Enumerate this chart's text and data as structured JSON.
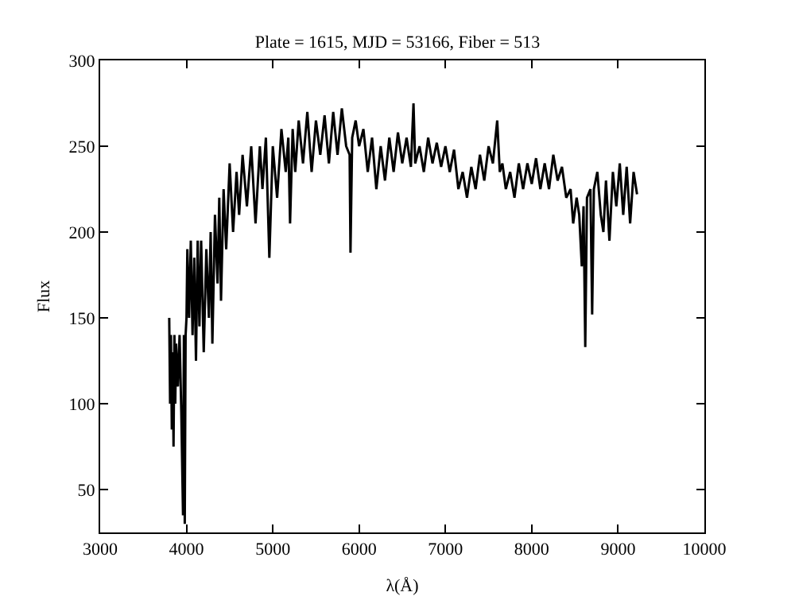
{
  "chart_data": {
    "type": "line",
    "title": "Plate = 1615, MJD = 53166, Fiber = 513",
    "xlabel": "λ(Å)",
    "ylabel": "Flux",
    "x": [
      3800,
      3810,
      3820,
      3830,
      3840,
      3850,
      3860,
      3870,
      3880,
      3900,
      3920,
      3940,
      3960,
      3970,
      3980,
      3990,
      4000,
      4010,
      4030,
      4050,
      4070,
      4090,
      4110,
      4130,
      4150,
      4170,
      4200,
      4230,
      4260,
      4280,
      4300,
      4330,
      4360,
      4380,
      4400,
      4430,
      4460,
      4500,
      4540,
      4580,
      4610,
      4650,
      4700,
      4750,
      4800,
      4850,
      4880,
      4920,
      4960,
      5000,
      5050,
      5100,
      5150,
      5180,
      5200,
      5230,
      5260,
      5300,
      5350,
      5400,
      5450,
      5500,
      5550,
      5600,
      5650,
      5700,
      5750,
      5800,
      5850,
      5890,
      5900,
      5920,
      5960,
      6000,
      6050,
      6100,
      6150,
      6200,
      6250,
      6300,
      6350,
      6400,
      6450,
      6500,
      6550,
      6600,
      6630,
      6650,
      6700,
      6750,
      6800,
      6850,
      6900,
      6950,
      7000,
      7050,
      7100,
      7150,
      7200,
      7250,
      7300,
      7350,
      7400,
      7450,
      7500,
      7550,
      7600,
      7630,
      7660,
      7700,
      7750,
      7800,
      7850,
      7900,
      7950,
      8000,
      8050,
      8100,
      8150,
      8200,
      8250,
      8300,
      8350,
      8400,
      8450,
      8480,
      8520,
      8550,
      8580,
      8600,
      8620,
      8640,
      8680,
      8700,
      8720,
      8760,
      8800,
      8830,
      8860,
      8900,
      8940,
      8980,
      9020,
      9060,
      9100,
      9140,
      9180,
      9220
    ],
    "series": [
      {
        "color": "#000000",
        "values": [
          150,
          100,
          140,
          85,
          130,
          75,
          140,
          100,
          135,
          110,
          140,
          95,
          35,
          140,
          30,
          140,
          150,
          190,
          150,
          195,
          140,
          185,
          125,
          195,
          145,
          195,
          130,
          190,
          150,
          200,
          135,
          210,
          170,
          220,
          160,
          225,
          190,
          240,
          200,
          235,
          210,
          245,
          215,
          250,
          205,
          250,
          225,
          255,
          185,
          250,
          220,
          260,
          235,
          255,
          205,
          260,
          235,
          265,
          240,
          270,
          235,
          265,
          245,
          268,
          240,
          270,
          245,
          272,
          250,
          245,
          188,
          255,
          265,
          250,
          260,
          235,
          255,
          225,
          250,
          230,
          255,
          235,
          258,
          240,
          255,
          238,
          275,
          240,
          250,
          235,
          255,
          240,
          252,
          238,
          250,
          235,
          248,
          225,
          235,
          220,
          238,
          225,
          245,
          230,
          250,
          240,
          265,
          235,
          240,
          225,
          235,
          220,
          240,
          225,
          240,
          228,
          243,
          225,
          240,
          225,
          245,
          230,
          238,
          220,
          225,
          205,
          220,
          210,
          180,
          215,
          133,
          220,
          225,
          152,
          225,
          235,
          210,
          200,
          230,
          195,
          235,
          215,
          240,
          210,
          238,
          205,
          235,
          222
        ]
      }
    ],
    "xlim": [
      3000,
      10000
    ],
    "xticks": [
      3000,
      4000,
      5000,
      6000,
      7000,
      8000,
      9000,
      10000
    ],
    "ylim": [
      25,
      300
    ],
    "yticks": [
      50,
      100,
      150,
      200,
      250,
      300
    ],
    "grid": false,
    "marker": "none",
    "line_style": "solid"
  }
}
